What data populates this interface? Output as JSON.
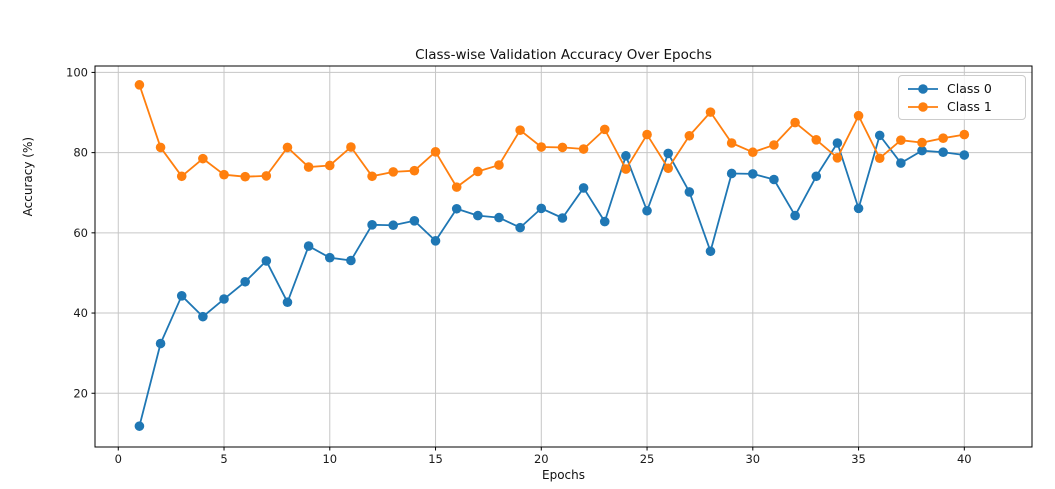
{
  "chart_data": {
    "type": "line",
    "title": "Class-wise Validation Accuracy Over Epochs",
    "xlabel": "Epochs",
    "ylabel": "Accuracy (%)",
    "xlim": [
      -1.1,
      43.2
    ],
    "ylim": [
      6.6,
      101.6
    ],
    "x_ticks": [
      0,
      5,
      10,
      15,
      20,
      25,
      30,
      35,
      40
    ],
    "y_ticks": [
      20,
      40,
      60,
      80,
      100
    ],
    "grid": true,
    "legend_position": "upper right",
    "x": [
      1,
      2,
      3,
      4,
      5,
      6,
      7,
      8,
      9,
      10,
      11,
      12,
      13,
      14,
      15,
      16,
      17,
      18,
      19,
      20,
      21,
      22,
      23,
      24,
      25,
      26,
      27,
      28,
      29,
      30,
      31,
      32,
      33,
      34,
      35,
      36,
      37,
      38,
      39,
      40
    ],
    "series": [
      {
        "name": "Class 0",
        "color": "#1f77b4",
        "values": [
          11.8,
          32.4,
          44.3,
          39.1,
          43.5,
          47.8,
          53.0,
          42.7,
          56.7,
          53.8,
          53.1,
          62.0,
          61.9,
          63.0,
          58.0,
          66.0,
          64.3,
          63.8,
          61.3,
          66.1,
          63.7,
          71.2,
          62.8,
          79.2,
          65.5,
          79.8,
          70.2,
          55.4,
          74.8,
          74.7,
          73.3,
          64.3,
          74.1,
          82.4,
          66.1,
          84.3,
          77.4,
          80.5,
          80.1,
          79.4
        ]
      },
      {
        "name": "Class 1",
        "color": "#ff7f0e",
        "values": [
          96.9,
          81.3,
          74.1,
          78.5,
          74.5,
          74.0,
          74.2,
          81.3,
          76.4,
          76.8,
          81.4,
          74.1,
          75.2,
          75.5,
          80.2,
          71.4,
          75.3,
          76.9,
          85.6,
          81.4,
          81.3,
          80.9,
          85.8,
          75.9,
          84.5,
          76.1,
          84.2,
          90.1,
          82.4,
          80.1,
          81.9,
          87.5,
          83.2,
          78.7,
          89.2,
          78.6,
          83.1,
          82.5,
          83.6,
          84.5
        ]
      }
    ],
    "colors": {
      "background": "#ffffff",
      "grid": "#c6c6c6",
      "spine": "#000000",
      "tick_label": "#1a1a1a",
      "legend_border": "#cccccc"
    }
  }
}
